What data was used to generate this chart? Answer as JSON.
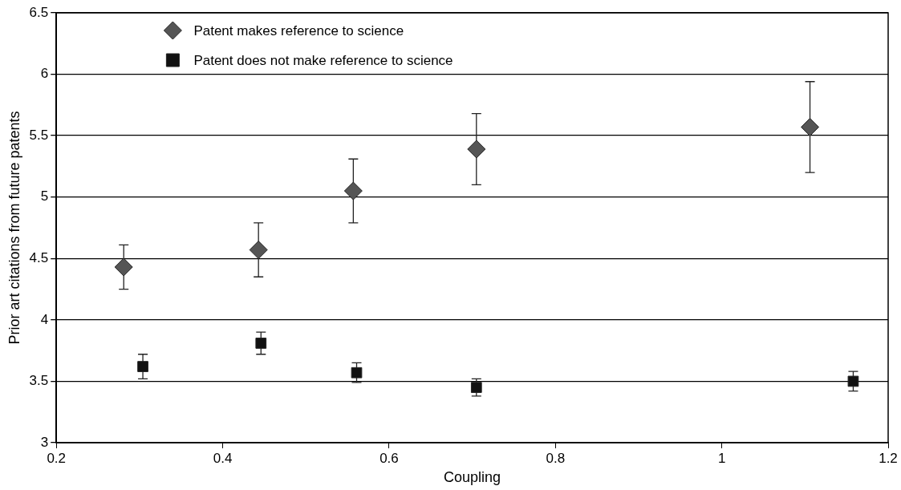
{
  "chart_data": {
    "type": "scatter",
    "xlabel": "Coupling",
    "ylabel": "Prior art citations from future patents",
    "xlim": [
      0.2,
      1.2
    ],
    "xticks": [
      0.2,
      0.4,
      0.6,
      0.8,
      1,
      1.2
    ],
    "ylim": [
      3,
      6.5
    ],
    "yticks": [
      3,
      3.5,
      4,
      4.5,
      5,
      5.5,
      6,
      6.5
    ],
    "grid": "y",
    "legend": "top",
    "series": [
      {
        "name": "Patent makes reference to science",
        "color": "#555555",
        "marker": "diamond",
        "x": [
          0.281,
          0.443,
          0.557,
          0.705,
          1.106
        ],
        "values": [
          4.43,
          4.57,
          5.05,
          5.39,
          5.57
        ],
        "errors": [
          0.18,
          0.22,
          0.26,
          0.29,
          0.37
        ]
      },
      {
        "name": "Patent does not make reference to science",
        "color": "#111111",
        "marker": "square",
        "x": [
          0.304,
          0.446,
          0.561,
          0.705,
          1.158
        ],
        "values": [
          3.62,
          3.81,
          3.57,
          3.45,
          3.5
        ],
        "errors": [
          0.1,
          0.09,
          0.08,
          0.07,
          0.08
        ]
      }
    ]
  }
}
